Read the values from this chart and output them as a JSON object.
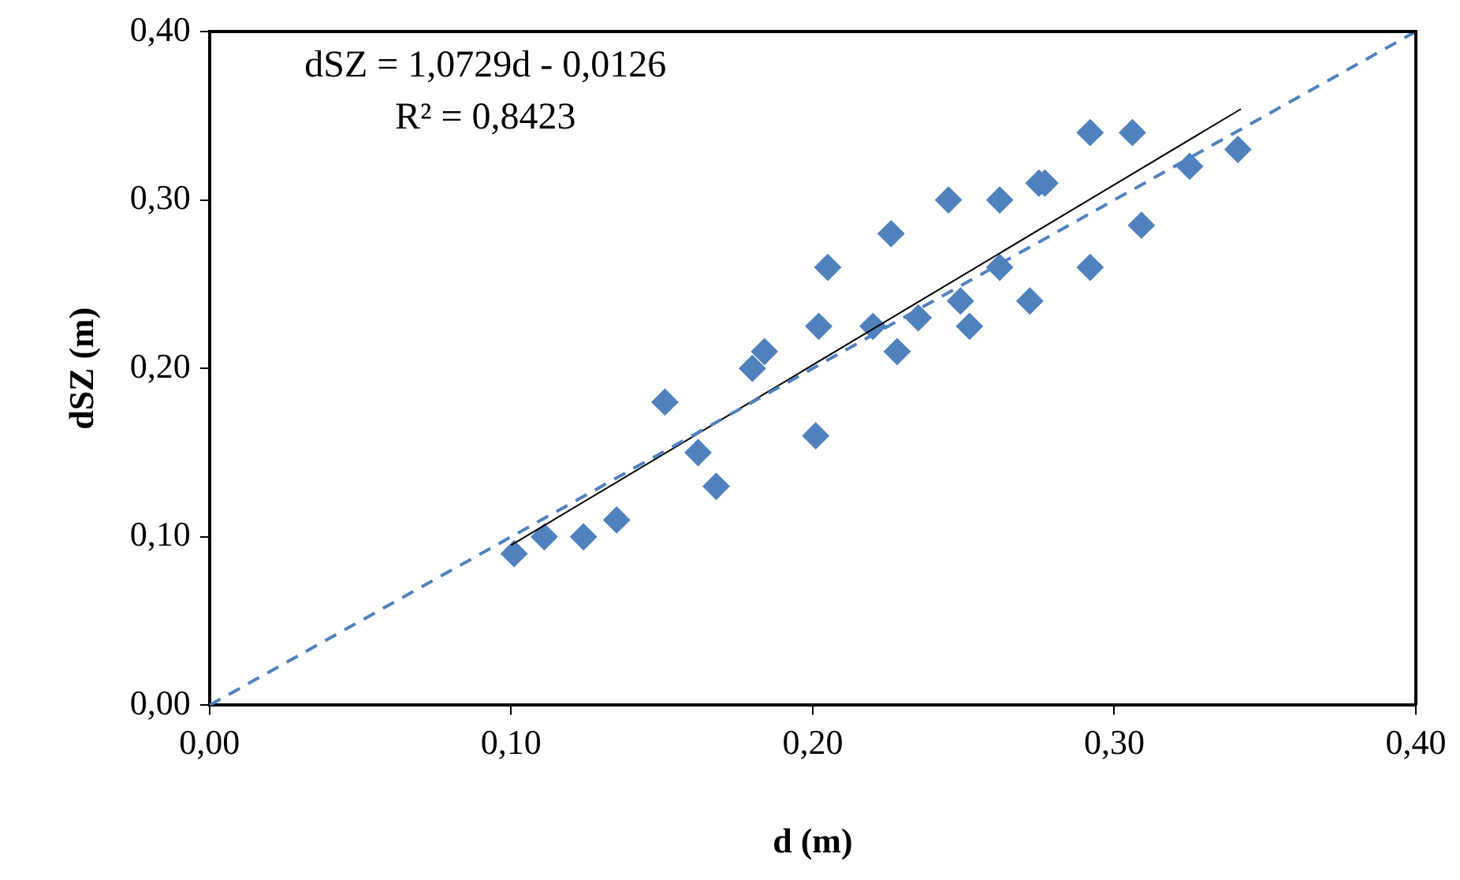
{
  "chart_data": {
    "type": "scatter",
    "xlabel": "d (m)",
    "ylabel": "dSZ (m)",
    "xlim": [
      0,
      0.4
    ],
    "ylim": [
      0,
      0.4
    ],
    "xticks": [
      {
        "value": 0,
        "label": "0,00"
      },
      {
        "value": 0.1,
        "label": "0,10"
      },
      {
        "value": 0.2,
        "label": "0,20"
      },
      {
        "value": 0.3,
        "label": "0,30"
      },
      {
        "value": 0.4,
        "label": "0,40"
      }
    ],
    "yticks": [
      {
        "value": 0,
        "label": "0,00"
      },
      {
        "value": 0.1,
        "label": "0,10"
      },
      {
        "value": 0.2,
        "label": "0,20"
      },
      {
        "value": 0.3,
        "label": "0,30"
      },
      {
        "value": 0.4,
        "label": "0,40"
      }
    ],
    "grid": false,
    "legend": false,
    "annotations": [
      "dSZ = 1,0729d - 0,0126",
      "R² = 0,8423"
    ],
    "series": [
      {
        "type": "scatter",
        "color": "#4f81bd",
        "marker": "diamond",
        "x": [
          0.101,
          0.111,
          0.124,
          0.135,
          0.151,
          0.162,
          0.168,
          0.18,
          0.184,
          0.201,
          0.202,
          0.205,
          0.22,
          0.226,
          0.228,
          0.235,
          0.245,
          0.249,
          0.252,
          0.262,
          0.262,
          0.272,
          0.275,
          0.277,
          0.292,
          0.292,
          0.306,
          0.309,
          0.325,
          0.341
        ],
        "values": [
          0.09,
          0.1,
          0.1,
          0.11,
          0.18,
          0.15,
          0.13,
          0.2,
          0.21,
          0.16,
          0.225,
          0.26,
          0.225,
          0.28,
          0.21,
          0.23,
          0.3,
          0.24,
          0.225,
          0.3,
          0.26,
          0.24,
          0.31,
          0.31,
          0.34,
          0.26,
          0.34,
          0.285,
          0.32,
          0.33
        ]
      },
      {
        "type": "line",
        "color": "#000000",
        "marker": "none",
        "line_style": "solid",
        "x": [
          0.1,
          0.342
        ],
        "values": [
          0.095,
          0.354
        ]
      },
      {
        "type": "line",
        "color": "#4f81bd",
        "marker": "none",
        "line_style": "dashed",
        "x": [
          0,
          0.4
        ],
        "values": [
          0,
          0.4
        ]
      }
    ]
  }
}
